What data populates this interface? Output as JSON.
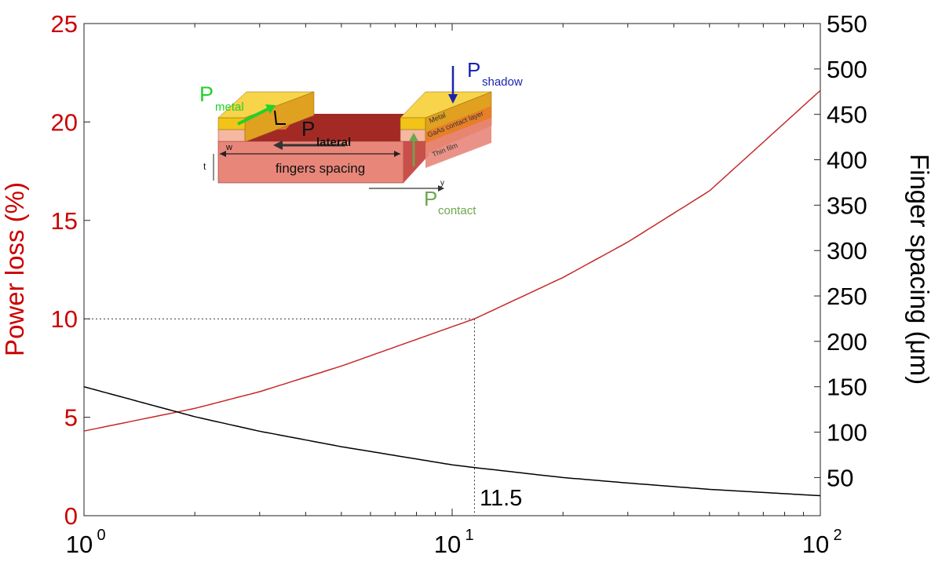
{
  "chart_data": {
    "type": "line",
    "x_scale": "log",
    "xlim": [
      1,
      100
    ],
    "x_ticks": [
      {
        "value": 1,
        "base": "10",
        "exp": "0"
      },
      {
        "value": 10,
        "base": "10",
        "exp": "1"
      },
      {
        "value": 100,
        "base": "10",
        "exp": "2"
      }
    ],
    "y_left": {
      "label": "Power loss (%)",
      "lim": [
        0,
        25
      ],
      "ticks": [
        "0",
        "5",
        "10",
        "15",
        "20",
        "25"
      ],
      "color": "#cc0000"
    },
    "y_right": {
      "label": "Finger spacing (μm)",
      "lim": [
        8,
        550
      ],
      "ticks": [
        "50",
        "100",
        "150",
        "200",
        "250",
        "300",
        "350",
        "400",
        "450",
        "500",
        "550"
      ],
      "color": "#000000"
    },
    "series": [
      {
        "axis": "left",
        "color": "#c62828",
        "x": [
          1,
          2,
          3,
          5,
          10,
          11.5,
          20,
          30,
          50,
          100
        ],
        "y": [
          4.3,
          5.45,
          6.3,
          7.6,
          9.6,
          10.0,
          12.1,
          13.9,
          16.5,
          21.6
        ]
      },
      {
        "axis": "right",
        "color": "#000000",
        "x": [
          1,
          2,
          3,
          5,
          10,
          11.5,
          20,
          30,
          50,
          100
        ],
        "y": [
          150,
          117,
          101,
          84,
          64,
          61,
          50,
          44,
          37,
          30
        ]
      }
    ],
    "reference": {
      "x": 11.5,
      "y": 10,
      "label": "11.5"
    },
    "grid": false,
    "inset": {
      "labels": {
        "p": "P",
        "metal": "metal",
        "lateral": "lateral",
        "shadow": "shadow",
        "contact": "contact",
        "L": "L",
        "w": "w",
        "t": "t",
        "y": "y",
        "fingers_spacing": "fingers spacing",
        "metal_layer": "Metal",
        "contact_layer": "GaAs contact layer",
        "film_layer": "Thin film"
      },
      "colors": {
        "metal": "#f2c418",
        "contact_layer": "#e8742a",
        "film": "#e8867a",
        "film_top": "#a32a24",
        "film_side": "#c9504a",
        "shadow_arrow": "#1a23b0",
        "metal_arrow": "#22d12a",
        "contact_arrow": "#6aa84f"
      }
    }
  }
}
